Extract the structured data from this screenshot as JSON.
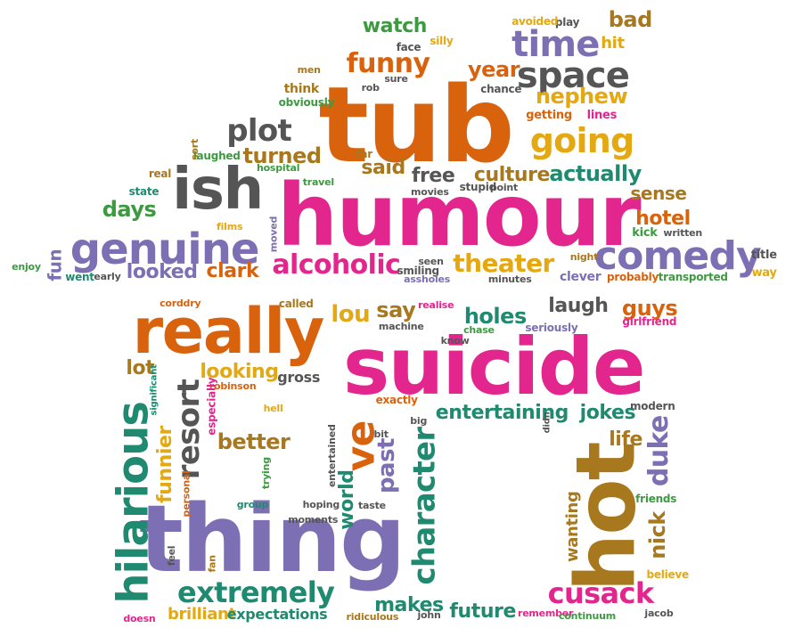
{
  "palette": {
    "orange": "#d9620d",
    "magenta": "#e3268d",
    "purple": "#7d6fb3",
    "gray": "#555555",
    "green": "#3d9a41",
    "teal": "#1f8a6f",
    "gold": "#e3a812",
    "brown": "#a8781f"
  },
  "words": [
    "tub",
    "humour",
    "suicide",
    "thing",
    "hot",
    "really",
    "ish",
    "genuine",
    "comedy",
    "alcoholic",
    "theater",
    "time",
    "space",
    "going",
    "funny",
    "plot",
    "turned",
    "watch",
    "bad",
    "nephew",
    "year",
    "culture",
    "actually",
    "free",
    "said",
    "sense",
    "hotel",
    "hilarious",
    "resort",
    "lou",
    "say",
    "holes",
    "laugh",
    "guys",
    "jokes",
    "entertaining",
    "life",
    "duke",
    "nick",
    "cusack",
    "character",
    "past",
    "world",
    "ve",
    "extremely",
    "brilliant",
    "expectations",
    "makes",
    "future",
    "funnier",
    "better",
    "looking",
    "lot",
    "gross",
    "wanting",
    "days",
    "looked",
    "clark",
    "fun",
    "hit",
    "play",
    "avoided",
    "silly",
    "face",
    "men",
    "sure",
    "rob",
    "chance",
    "think",
    "obviously",
    "getting",
    "lines",
    "laughed",
    "sort",
    "far",
    "hospital",
    "real",
    "travel",
    "state",
    "stupid",
    "point",
    "movies",
    "kick",
    "written",
    "films",
    "moved",
    "seen",
    "smiling",
    "assholes",
    "minutes",
    "night",
    "clever",
    "probably",
    "transported",
    "title",
    "way",
    "enjoy",
    "went",
    "early",
    "corddry",
    "called",
    "realise",
    "machine",
    "seriously",
    "girlfriend",
    "chase",
    "know",
    "robinson",
    "significant",
    "especially",
    "exactly",
    "big",
    "bit",
    "didn",
    "modern",
    "hell",
    "entertained",
    "trying",
    "personal",
    "group",
    "hoping",
    "taste",
    "moments",
    "feel",
    "fan",
    "friends",
    "believe",
    "doesn",
    "john",
    "ridiculous",
    "remember",
    "continuum",
    "jacob"
  ]
}
